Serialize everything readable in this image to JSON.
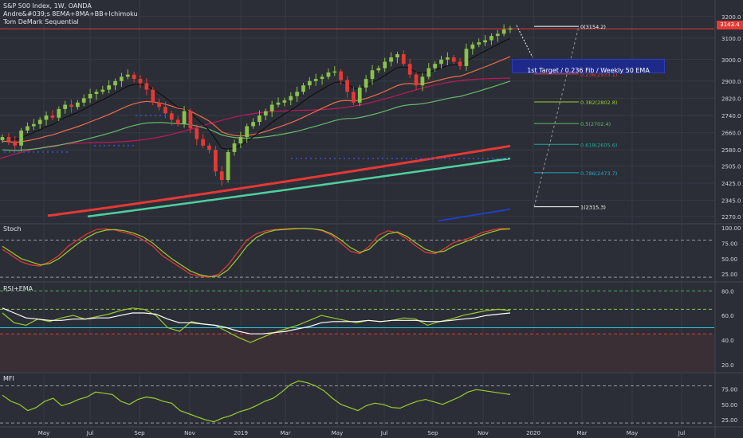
{
  "header": {
    "title": "S&P 500 Index, 1W, OANDA",
    "indicator1": "Andre&#039;s 8EMA+8MA+BB+Ichimoku",
    "indicator2": "Tom DeMark Sequential"
  },
  "panes": {
    "stoch": "Stoch",
    "rsi": "RSI+EMA",
    "mfi": "MFI"
  },
  "price_tag": "3143.4",
  "target_label": "1st Target / 0.236 Fib / Weekly 50 EMA",
  "fib_levels": [
    {
      "label": "0(3154.2)",
      "value": 3154.2,
      "color": "#ffffff"
    },
    {
      "label": "0.236(2933.1)",
      "value": 2933.1,
      "color": "#e53935"
    },
    {
      "label": "0.382(2802.8)",
      "value": 2802.8,
      "color": "#9ccc2e"
    },
    {
      "label": "0.5(2702.4)",
      "value": 2702.4,
      "color": "#66bb6a"
    },
    {
      "label": "0.618(2605.6)",
      "value": 2605.6,
      "color": "#26a69a"
    },
    {
      "label": "0.786(2473.7)",
      "value": 2473.7,
      "color": "#26a6c9"
    },
    {
      "label": "1(2315.3)",
      "value": 2315.3,
      "color": "#ffffff"
    }
  ],
  "chart_data": [
    {
      "type": "candlestick",
      "title": "S&P 500 Index, 1W, OANDA",
      "ylim": [
        2240,
        3240
      ],
      "y_ticks": [
        "3200.0",
        "3100.0",
        "3000.0",
        "2900.0",
        "2820.0",
        "2740.0",
        "2660.0",
        "2580.0",
        "2505.0",
        "2425.0",
        "2345.0",
        "2270.0"
      ],
      "x_ticks": [
        "May",
        "Jul",
        "Sep",
        "Nov",
        "2019",
        "Mar",
        "May",
        "Jul",
        "Sep",
        "Nov",
        "2020",
        "Mar",
        "May",
        "Jul"
      ],
      "close": [
        2640,
        2620,
        2600,
        2670,
        2690,
        2700,
        2720,
        2740,
        2730,
        2770,
        2790,
        2780,
        2800,
        2820,
        2840,
        2850,
        2860,
        2880,
        2900,
        2920,
        2930,
        2910,
        2890,
        2860,
        2800,
        2780,
        2750,
        2720,
        2700,
        2760,
        2680,
        2630,
        2600,
        2580,
        2480,
        2440,
        2570,
        2610,
        2640,
        2690,
        2710,
        2740,
        2760,
        2790,
        2800,
        2810,
        2830,
        2850,
        2880,
        2900,
        2910,
        2920,
        2940,
        2945,
        2905,
        2850,
        2800,
        2870,
        2910,
        2950,
        2960,
        2990,
        3010,
        3025,
        2980,
        2930,
        2880,
        2920,
        2960,
        2980,
        3000,
        3010,
        2990,
        2970,
        3050,
        3070,
        3080,
        3090,
        3110,
        3120,
        3140,
        3145
      ]
    },
    {
      "type": "line",
      "title": "Stoch",
      "ylim": [
        15,
        105
      ],
      "y_ticks": [
        "100.00",
        "75.00",
        "50.00",
        "25.00"
      ],
      "series": [
        {
          "values": [
            65,
            55,
            45,
            40,
            38,
            45,
            55,
            70,
            80,
            90,
            97,
            98,
            96,
            92,
            88,
            80,
            70,
            55,
            45,
            35,
            25,
            22,
            20,
            25,
            40,
            60,
            80,
            90,
            95,
            97,
            98,
            99,
            99,
            98,
            95,
            88,
            75,
            62,
            58,
            70,
            88,
            95,
            92,
            82,
            70,
            60,
            58,
            66,
            76,
            80,
            85,
            92,
            96,
            99,
            98
          ]
        },
        {
          "values": [
            70,
            60,
            50,
            45,
            40,
            42,
            50,
            62,
            74,
            84,
            92,
            96,
            97,
            95,
            91,
            85,
            75,
            62,
            50,
            40,
            30,
            24,
            21,
            22,
            32,
            50,
            70,
            84,
            92,
            96,
            97,
            98,
            99,
            98,
            96,
            90,
            80,
            68,
            60,
            65,
            80,
            90,
            93,
            86,
            75,
            65,
            60,
            62,
            70,
            76,
            82,
            88,
            93,
            97,
            98
          ]
        }
      ]
    },
    {
      "type": "line",
      "title": "RSI+EMA",
      "ylim": [
        14,
        86
      ],
      "y_ticks": [
        "80.0",
        "60.0",
        "40.0",
        "20.0"
      ],
      "series": [
        {
          "values": [
            62,
            54,
            52,
            57,
            55,
            58,
            60,
            57,
            59,
            61,
            64,
            66,
            65,
            60,
            50,
            47,
            55,
            53,
            52,
            47,
            42,
            38,
            42,
            46,
            49,
            52,
            56,
            60,
            58,
            56,
            54,
            56,
            55,
            56,
            58,
            57,
            52,
            55,
            57,
            60,
            62,
            64,
            65,
            64
          ]
        },
        {
          "values": [
            66,
            62,
            58,
            57,
            56,
            56,
            57,
            57,
            58,
            58,
            60,
            62,
            62,
            61,
            57,
            54,
            54,
            53,
            52,
            50,
            47,
            45,
            45,
            46,
            47,
            49,
            51,
            54,
            55,
            55,
            55,
            56,
            55,
            56,
            56,
            56,
            55,
            55,
            56,
            57,
            58,
            60,
            61,
            62
          ]
        }
      ]
    },
    {
      "type": "line",
      "title": "MFI",
      "ylim": [
        15,
        100
      ],
      "y_ticks": [
        "75.00",
        "50.00",
        "25.00"
      ],
      "series": [
        {
          "values": [
            65,
            55,
            50,
            40,
            45,
            55,
            60,
            48,
            52,
            58,
            62,
            70,
            68,
            66,
            55,
            50,
            58,
            62,
            60,
            55,
            52,
            40,
            35,
            30,
            25,
            22,
            28,
            32,
            38,
            42,
            48,
            55,
            60,
            70,
            82,
            88,
            85,
            80,
            72,
            60,
            50,
            45,
            40,
            48,
            52,
            50,
            45,
            44,
            50,
            55,
            58,
            54,
            50,
            56,
            62,
            70,
            74,
            72,
            70,
            68,
            66
          ]
        }
      ]
    }
  ]
}
